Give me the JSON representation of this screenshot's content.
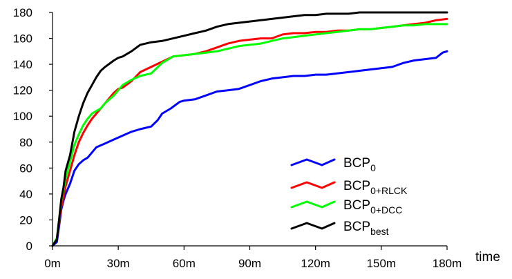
{
  "chart_data": {
    "type": "line",
    "xlabel": "time",
    "ylabel": "",
    "xlim": [
      0,
      180
    ],
    "ylim": [
      0,
      180
    ],
    "x_ticks": [
      {
        "value": 0,
        "label": "0m"
      },
      {
        "value": 30,
        "label": "30m"
      },
      {
        "value": 60,
        "label": "60m"
      },
      {
        "value": 90,
        "label": "90m"
      },
      {
        "value": 120,
        "label": "120m"
      },
      {
        "value": 150,
        "label": "150m"
      },
      {
        "value": 180,
        "label": "180m"
      }
    ],
    "y_ticks": [
      0,
      20,
      40,
      60,
      80,
      100,
      120,
      140,
      160,
      180
    ],
    "grid": false,
    "legend_position": "bottom-right",
    "series": [
      {
        "name": "BCP",
        "subscript": "0",
        "color": "#0000ff",
        "x": [
          0,
          2,
          3,
          4,
          5,
          6,
          8,
          10,
          12,
          14,
          16,
          18,
          20,
          24,
          28,
          32,
          36,
          40,
          45,
          48,
          50,
          54,
          58,
          60,
          65,
          70,
          75,
          80,
          85,
          90,
          95,
          100,
          105,
          110,
          115,
          120,
          125,
          130,
          135,
          140,
          145,
          150,
          155,
          160,
          165,
          170,
          175,
          178,
          180
        ],
        "y": [
          0,
          3,
          15,
          28,
          35,
          40,
          48,
          58,
          63,
          66,
          68,
          72,
          76,
          79,
          82,
          85,
          88,
          90,
          92,
          97,
          102,
          106,
          111,
          112,
          113,
          116,
          119,
          120,
          121,
          124,
          127,
          129,
          130,
          131,
          131,
          132,
          132,
          133,
          134,
          135,
          136,
          137,
          138,
          141,
          143,
          144,
          145,
          149,
          150
        ]
      },
      {
        "name": "BCP",
        "subscript": "0+RLCK",
        "color": "#ff0000",
        "x": [
          0,
          2,
          3,
          4,
          5,
          6,
          8,
          10,
          12,
          14,
          16,
          18,
          20,
          22,
          24,
          28,
          30,
          32,
          36,
          40,
          45,
          50,
          55,
          60,
          65,
          70,
          75,
          80,
          85,
          90,
          95,
          100,
          105,
          110,
          115,
          120,
          125,
          130,
          135,
          140,
          145,
          150,
          155,
          160,
          165,
          170,
          175,
          180
        ],
        "y": [
          0,
          5,
          18,
          30,
          38,
          46,
          58,
          70,
          80,
          87,
          93,
          98,
          102,
          106,
          110,
          118,
          121,
          122,
          127,
          134,
          138,
          142,
          146,
          147,
          148,
          150,
          153,
          156,
          158,
          159,
          160,
          160,
          163,
          164,
          164,
          165,
          165,
          166,
          166,
          167,
          167,
          168,
          169,
          170,
          171,
          172,
          174,
          175
        ]
      },
      {
        "name": "BCP",
        "subscript": "0+DCC",
        "color": "#00ff00",
        "x": [
          0,
          2,
          3,
          4,
          5,
          6,
          8,
          10,
          12,
          14,
          16,
          18,
          20,
          22,
          24,
          28,
          30,
          32,
          36,
          40,
          45,
          50,
          55,
          60,
          65,
          70,
          75,
          80,
          85,
          90,
          95,
          100,
          105,
          110,
          115,
          120,
          125,
          130,
          135,
          140,
          145,
          150,
          155,
          160,
          165,
          170,
          175,
          180
        ],
        "y": [
          0,
          6,
          20,
          35,
          43,
          52,
          65,
          78,
          86,
          93,
          98,
          102,
          104,
          106,
          110,
          116,
          120,
          124,
          128,
          131,
          133,
          141,
          146,
          147,
          148,
          149,
          150,
          152,
          154,
          155,
          156,
          158,
          160,
          161,
          162,
          163,
          164,
          165,
          166,
          167,
          167,
          168,
          169,
          170,
          170,
          171,
          171,
          171
        ]
      },
      {
        "name": "BCP",
        "subscript": "best",
        "color": "#000000",
        "x": [
          0,
          2,
          3,
          4,
          5,
          6,
          8,
          10,
          12,
          14,
          16,
          18,
          20,
          22,
          24,
          28,
          30,
          32,
          36,
          40,
          45,
          50,
          55,
          60,
          65,
          70,
          75,
          80,
          85,
          90,
          95,
          100,
          105,
          110,
          115,
          120,
          125,
          130,
          135,
          140,
          145,
          150,
          155,
          160,
          165,
          170,
          175,
          180
        ],
        "y": [
          0,
          5,
          20,
          36,
          45,
          58,
          70,
          88,
          100,
          110,
          118,
          124,
          130,
          135,
          138,
          143,
          145,
          146,
          150,
          155,
          157,
          158,
          160,
          162,
          164,
          166,
          169,
          171,
          172,
          173,
          174,
          175,
          176,
          177,
          178,
          178,
          179,
          179,
          179,
          180,
          180,
          180,
          180,
          180,
          180,
          180,
          180,
          180
        ]
      }
    ]
  }
}
